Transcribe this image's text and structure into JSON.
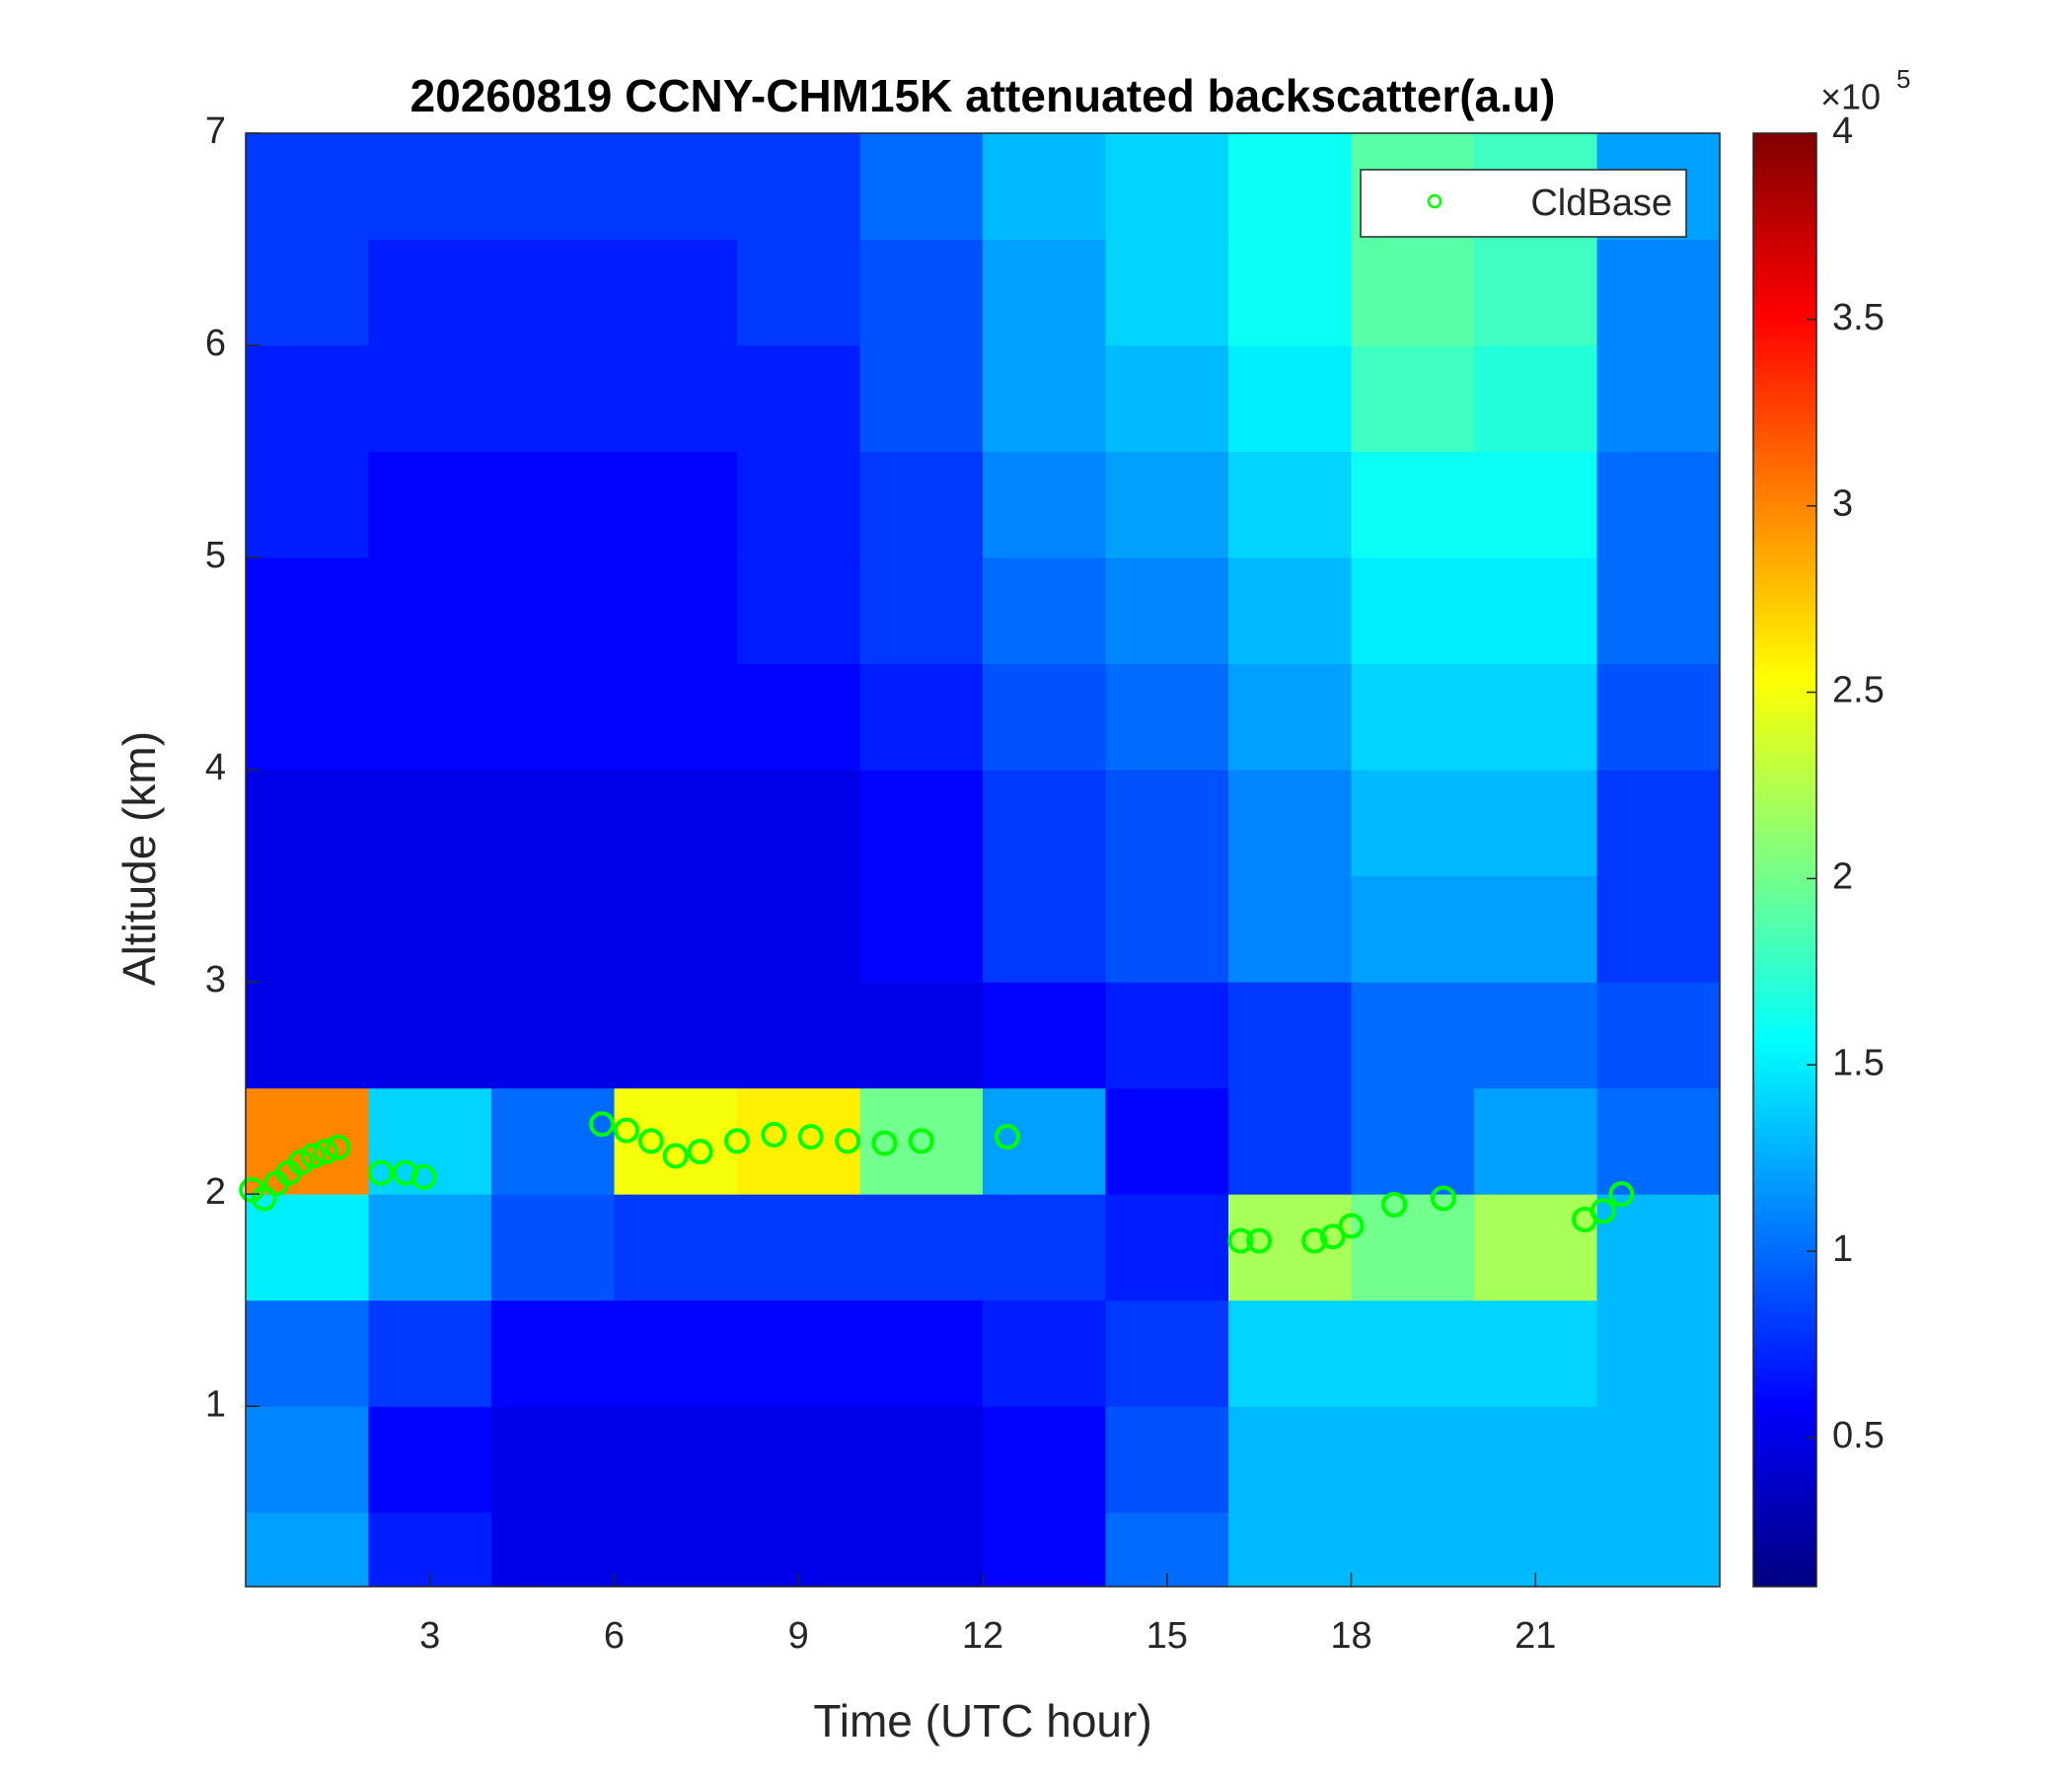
{
  "chart_data": {
    "type": "heatmap",
    "title": "20260819 CCNY-CHM15K attenuated backscatter(a.u)",
    "x_label": "Time (UTC hour)",
    "y_label": "Altitude (km)",
    "xlim": [
      0,
      24
    ],
    "xticks": [
      3,
      6,
      9,
      12,
      15,
      18,
      21
    ],
    "ylim": [
      0.15,
      7
    ],
    "yticks": [
      1,
      2,
      3,
      4,
      5,
      6,
      7
    ],
    "x_edges": [
      0,
      2,
      4,
      6,
      8,
      10,
      12,
      14,
      16,
      18,
      20,
      22,
      24
    ],
    "y_edges": [
      0.15,
      0.5,
      1,
      1.5,
      2,
      2.5,
      3,
      3.5,
      4,
      4.5,
      5,
      5.5,
      6,
      6.5,
      7
    ],
    "z": [
      [
        1.2,
        0.7,
        0.5,
        0.5,
        0.5,
        0.5,
        0.6,
        1.0,
        1.3,
        1.3,
        1.3,
        1.3
      ],
      [
        1.1,
        0.6,
        0.5,
        0.5,
        0.5,
        0.5,
        0.6,
        0.9,
        1.3,
        1.3,
        1.3,
        1.3
      ],
      [
        1.0,
        0.8,
        0.6,
        0.6,
        0.6,
        0.6,
        0.7,
        0.8,
        1.4,
        1.4,
        1.4,
        1.3
      ],
      [
        1.5,
        1.2,
        0.9,
        0.8,
        0.8,
        0.8,
        0.8,
        0.7,
        2.2,
        2.0,
        2.2,
        1.3
      ],
      [
        3.0,
        1.4,
        1.0,
        2.5,
        2.6,
        2.0,
        1.2,
        0.6,
        0.8,
        1.0,
        1.2,
        1.0
      ],
      [
        0.5,
        0.5,
        0.5,
        0.5,
        0.5,
        0.5,
        0.6,
        0.7,
        0.8,
        1.0,
        1.0,
        0.9
      ],
      [
        0.5,
        0.5,
        0.5,
        0.5,
        0.5,
        0.6,
        0.8,
        0.9,
        1.1,
        1.2,
        1.2,
        0.8
      ],
      [
        0.5,
        0.5,
        0.5,
        0.5,
        0.5,
        0.6,
        0.8,
        0.9,
        1.1,
        1.3,
        1.3,
        0.8
      ],
      [
        0.6,
        0.6,
        0.6,
        0.6,
        0.6,
        0.7,
        0.9,
        1.0,
        1.2,
        1.4,
        1.4,
        0.9
      ],
      [
        0.6,
        0.6,
        0.6,
        0.6,
        0.7,
        0.8,
        1.0,
        1.1,
        1.3,
        1.5,
        1.5,
        1.0
      ],
      [
        0.7,
        0.6,
        0.6,
        0.6,
        0.7,
        0.8,
        1.1,
        1.2,
        1.4,
        1.6,
        1.6,
        1.0
      ],
      [
        0.7,
        0.7,
        0.7,
        0.7,
        0.7,
        0.9,
        1.2,
        1.3,
        1.5,
        1.8,
        1.7,
        1.1
      ],
      [
        0.8,
        0.7,
        0.7,
        0.7,
        0.8,
        0.9,
        1.2,
        1.4,
        1.6,
        1.9,
        1.8,
        1.1
      ],
      [
        0.8,
        0.8,
        0.8,
        0.8,
        0.8,
        1.0,
        1.3,
        1.4,
        1.6,
        1.9,
        1.8,
        1.2
      ]
    ],
    "clim": [
      0.1,
      4
    ],
    "cticks": [
      0.5,
      1,
      1.5,
      2,
      2.5,
      3,
      3.5,
      4
    ],
    "c_multiplier_base": "×10",
    "c_multiplier_exponent": "5",
    "legend": "upper right",
    "series": [
      {
        "name": "CldBase",
        "color": "#00ff00",
        "x": [
          0.1,
          0.3,
          0.5,
          0.7,
          0.9,
          1.1,
          1.3,
          1.5,
          2.2,
          2.6,
          2.9,
          5.8,
          6.2,
          6.6,
          7.0,
          7.4,
          8.0,
          8.6,
          9.2,
          9.8,
          10.4,
          11.0,
          12.4,
          16.2,
          16.5,
          17.4,
          17.7,
          18.0,
          18.7,
          19.5,
          21.8,
          22.1,
          22.4
        ],
        "y": [
          2.02,
          1.98,
          2.05,
          2.1,
          2.15,
          2.18,
          2.2,
          2.22,
          2.1,
          2.1,
          2.08,
          2.33,
          2.3,
          2.25,
          2.18,
          2.2,
          2.25,
          2.28,
          2.27,
          2.25,
          2.24,
          2.25,
          2.27,
          1.78,
          1.78,
          1.78,
          1.8,
          1.85,
          1.95,
          1.98,
          1.88,
          1.92,
          2.0
        ]
      }
    ]
  }
}
